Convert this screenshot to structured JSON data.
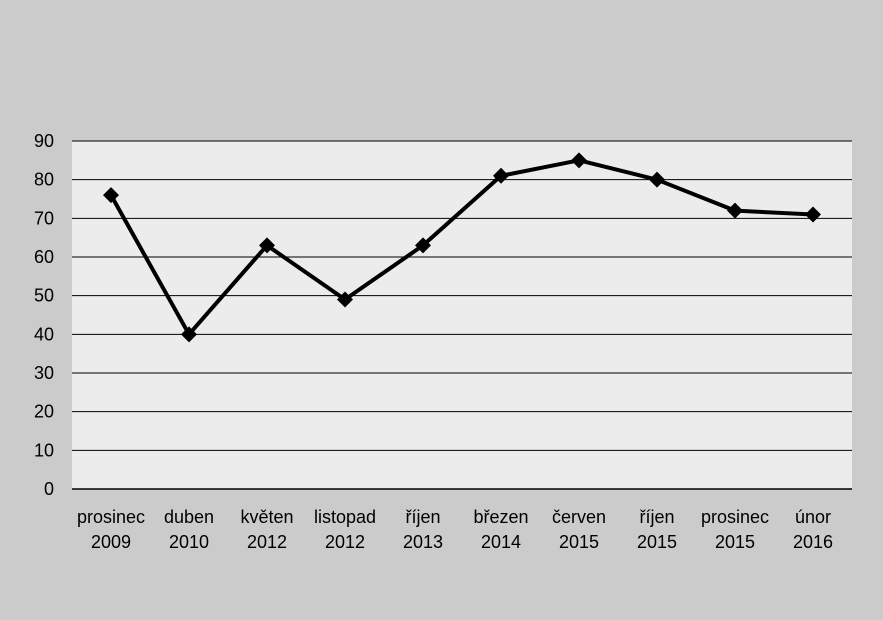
{
  "chart_data": {
    "type": "line",
    "categories": [
      [
        "prosinec",
        "2009"
      ],
      [
        "duben",
        "2010"
      ],
      [
        "květen",
        "2012"
      ],
      [
        "listopad",
        "2012"
      ],
      [
        "říjen",
        "2013"
      ],
      [
        "březen",
        "2014"
      ],
      [
        "červen",
        "2015"
      ],
      [
        "říjen",
        "2015"
      ],
      [
        "prosinec",
        "2015"
      ],
      [
        "únor",
        "2016"
      ]
    ],
    "series": [
      {
        "values": [
          76,
          40,
          63,
          49,
          63,
          81,
          85,
          80,
          72,
          71
        ]
      }
    ],
    "ylim": [
      0,
      90
    ],
    "yticks": [
      0,
      10,
      20,
      30,
      40,
      50,
      60,
      70,
      80,
      90
    ],
    "grid": true,
    "legend": "none",
    "marker": "diamond",
    "colors": {
      "background": "#cbcbcb",
      "plot_area": "#ececec",
      "line": "#000000",
      "grid": "#000000"
    }
  }
}
